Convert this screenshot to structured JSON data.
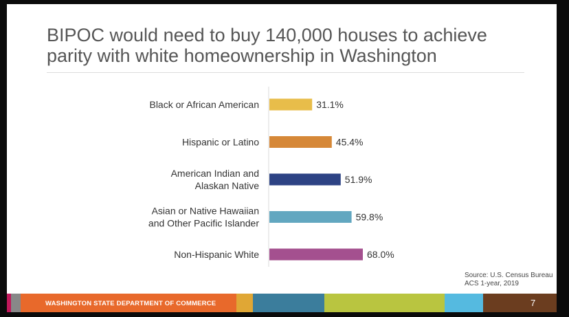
{
  "slide": {
    "title": "BIPOC would need to buy 140,000 houses to achieve parity with white homeownership in Washington",
    "source": "Source: U.S. Census Bureau ACS 1-year, 2019"
  },
  "footer": {
    "org_name": "WASHINGTON STATE DEPARTMENT OF COMMERCE",
    "page_number": "7",
    "colors": [
      "#c2185b",
      "#888888",
      "#e8692b",
      "#e0a735",
      "#3b7d9c",
      "#b9c540",
      "#55bae0",
      "#6b3d1f"
    ]
  },
  "chart_data": {
    "type": "bar",
    "orientation": "horizontal",
    "title": "",
    "xlabel": "",
    "ylabel": "",
    "xlim": [
      0,
      100
    ],
    "categories": [
      [
        "Black or African American"
      ],
      [
        "Hispanic or Latino"
      ],
      [
        "American Indian and",
        "Alaskan Native"
      ],
      [
        "Asian or Native Hawaiian",
        "and Other Pacific Islander"
      ],
      [
        "Non-Hispanic White"
      ]
    ],
    "values": [
      31.1,
      45.4,
      51.9,
      59.8,
      68.0
    ],
    "value_labels": [
      "31.1%",
      "45.4%",
      "51.9%",
      "59.8%",
      "68.0%"
    ],
    "colors": [
      "#e8bd4a",
      "#d68838",
      "#2d4384",
      "#62a7c0",
      "#a4508f"
    ],
    "grid": false,
    "legend": "none"
  }
}
